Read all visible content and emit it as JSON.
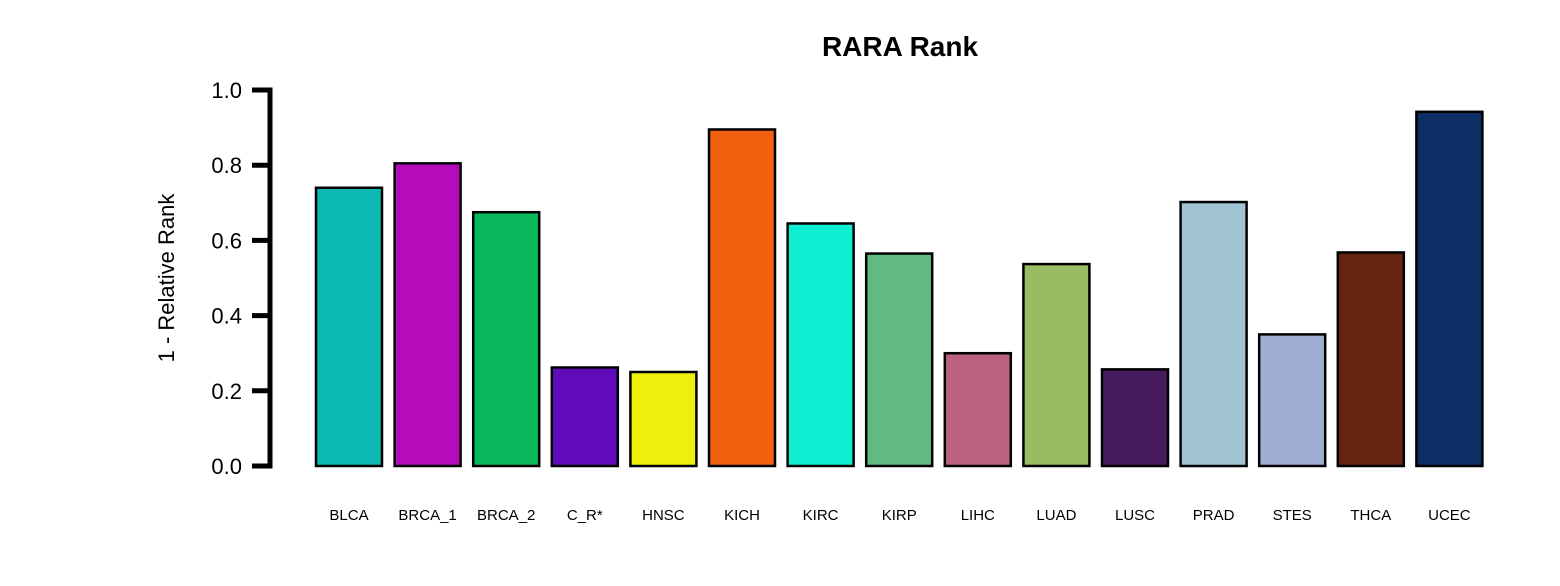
{
  "chart_data": {
    "type": "bar",
    "title": "RARA Rank",
    "xlabel": "",
    "ylabel": "1 - Relative Rank",
    "ylim": [
      0,
      1.0
    ],
    "yticks": [
      "0.0",
      "0.2",
      "0.4",
      "0.6",
      "0.8",
      "1.0"
    ],
    "grid": false,
    "categories": [
      "BLCA",
      "BRCA_1",
      "BRCA_2",
      "C_R*",
      "HNSC",
      "KICH",
      "KIRC",
      "KIRP",
      "LIHC",
      "LUAD",
      "LUSC",
      "PRAD",
      "STES",
      "THCA",
      "UCEC"
    ],
    "values": [
      0.74,
      0.805,
      0.675,
      0.262,
      0.25,
      0.895,
      0.645,
      0.565,
      0.3,
      0.537,
      0.257,
      0.702,
      0.35,
      0.568,
      0.942
    ],
    "colors": [
      "#0BBAB3",
      "#B60BBA",
      "#08B85A",
      "#5F0BBA",
      "#EEF00B",
      "#F06110",
      "#0EF0D1",
      "#61BA81",
      "#BC617E",
      "#97BC62",
      "#461A5E",
      "#A1C5D5",
      "#9FAED4",
      "#652512",
      "#0E2E66"
    ]
  }
}
